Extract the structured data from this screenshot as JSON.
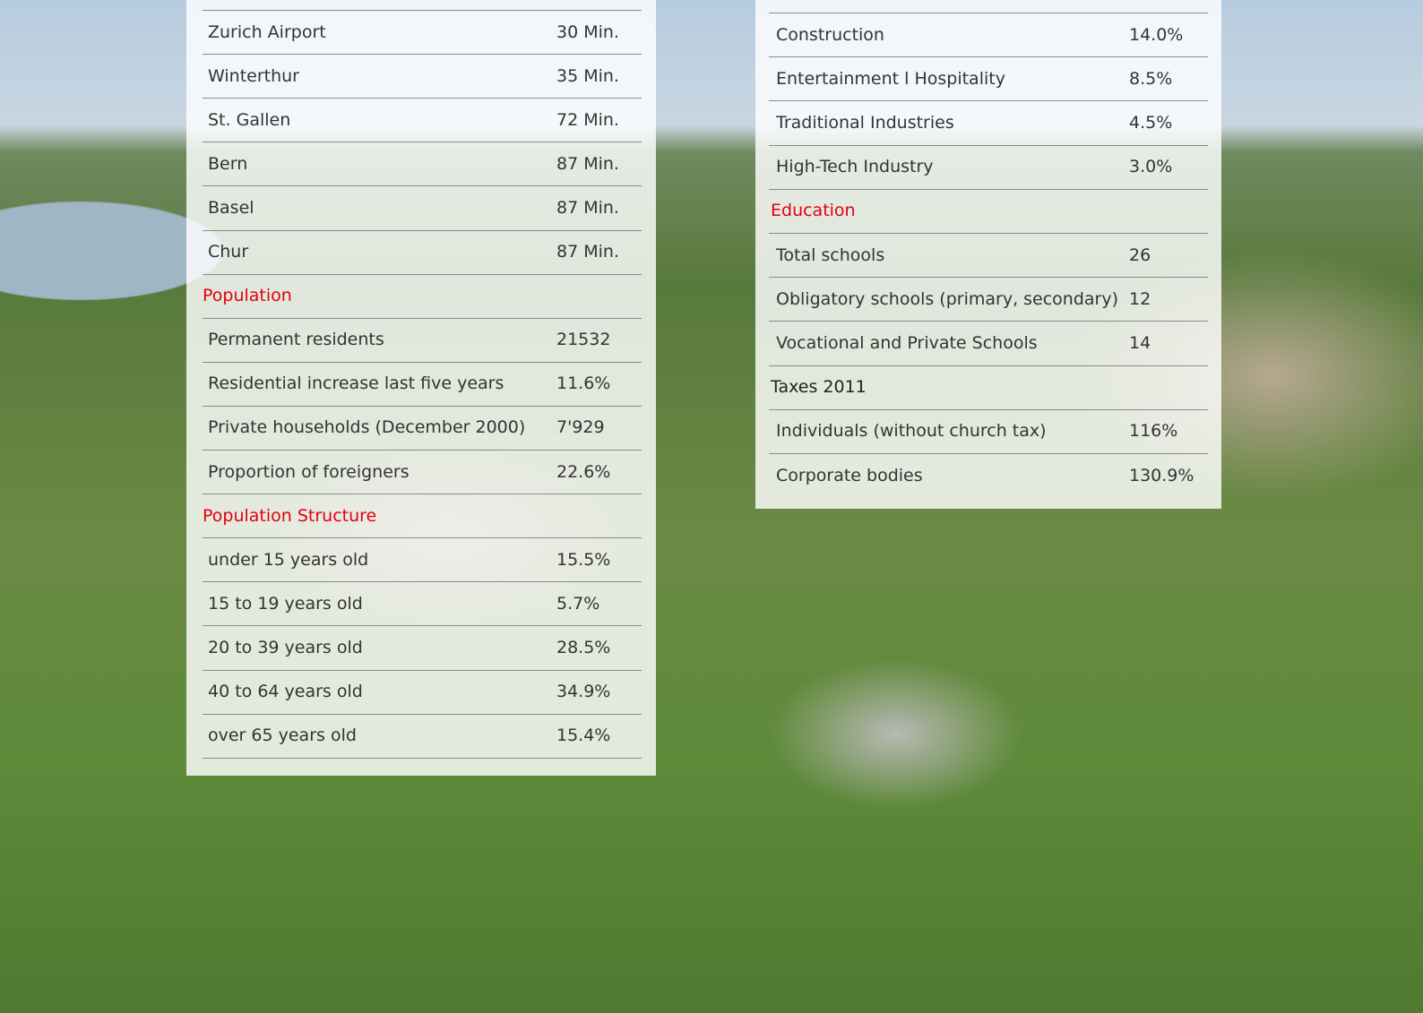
{
  "left_table": {
    "rows": [
      {
        "label": "Zurich Airport",
        "value": "30 Min."
      },
      {
        "label": "Winterthur",
        "value": "35 Min."
      },
      {
        "label": "St. Gallen",
        "value": "72 Min."
      },
      {
        "label": "Bern",
        "value": "87 Min."
      },
      {
        "label": "Basel",
        "value": "87 Min."
      },
      {
        "label": "Chur",
        "value": "87 Min."
      },
      {
        "heading": "Population",
        "color": "#e3000f"
      },
      {
        "label": "Permanent residents",
        "value": "21532"
      },
      {
        "label": "Residential increase last five years",
        "value": "11.6%"
      },
      {
        "label": "Private households (December 2000)",
        "value": "7'929"
      },
      {
        "label": "Proportion of foreigners",
        "value": "22.6%"
      },
      {
        "heading": "Population Structure",
        "color": "#e3000f"
      },
      {
        "label": "under 15 years old",
        "value": "15.5%"
      },
      {
        "label": "15 to 19 years old",
        "value": "5.7%"
      },
      {
        "label": "20 to 39 years old",
        "value": "28.5%"
      },
      {
        "label": "40 to 64 years old",
        "value": "34.9%"
      },
      {
        "label": "over 65 years old",
        "value": "15.4%"
      }
    ]
  },
  "right_table": {
    "rows": [
      {
        "label": "Construction",
        "value": "14.0%"
      },
      {
        "label": "Entertainment l Hospitality",
        "value": "8.5%"
      },
      {
        "label": "Traditional Industries",
        "value": "4.5%"
      },
      {
        "label": "High-Tech Industry",
        "value": "3.0%"
      },
      {
        "heading": "Education",
        "color": "#e3000f"
      },
      {
        "label": "Total schools",
        "value": "26"
      },
      {
        "label": "Obligatory schools (primary, secondary)",
        "value": "12"
      },
      {
        "label": "Vocational and Private Schools",
        "value": "14"
      },
      {
        "heading": "Taxes 2011",
        "color": "#222222"
      },
      {
        "label": "Individuals (without church tax)",
        "value": "116%"
      },
      {
        "label": "Corporate bodies",
        "value": "130.9%"
      }
    ]
  }
}
